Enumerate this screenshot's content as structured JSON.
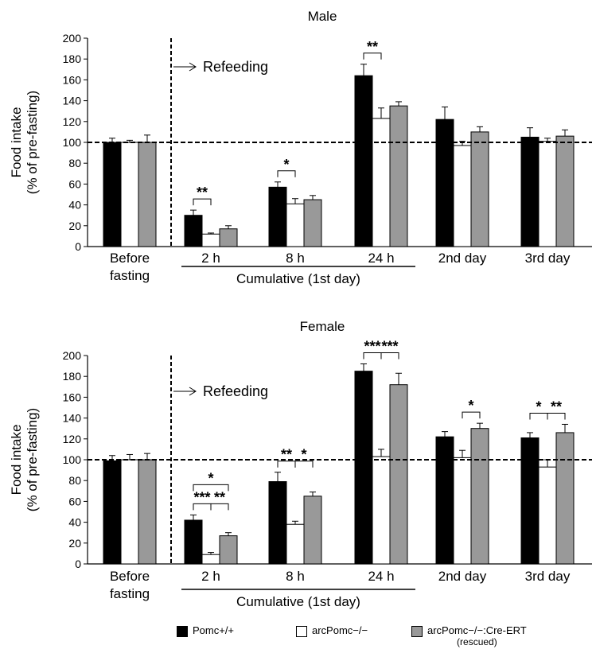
{
  "common": {
    "ylabel_line1": "Food intake",
    "ylabel_line2": "(% of pre-fasting)",
    "ylim": [
      0,
      200
    ],
    "yticks": [
      "0",
      "20",
      "40",
      "60",
      "80",
      "100",
      "120",
      "140",
      "160",
      "180",
      "200"
    ],
    "refeeding_label": "Refeeding",
    "cumulative_label": "Cumulative (1st day)",
    "categories": [
      "Before fasting",
      "2 h",
      "8 h",
      "24 h",
      "2nd day",
      "3rd day"
    ]
  },
  "legend": {
    "wt_label": "Pomc+/+",
    "ko_label": "arcPomc−/−",
    "rescued_label": "arcPomc−/−:Cre-ERT",
    "rescued_sub": "(rescued)"
  },
  "chart_data": [
    {
      "type": "bar",
      "title": "Male",
      "ylabel": "Food intake (% of pre-fasting)",
      "ylim": [
        0,
        200
      ],
      "reference_line": 100,
      "categories": [
        "Before fasting",
        "2 h",
        "8 h",
        "24 h",
        "2nd day",
        "3rd day"
      ],
      "series": [
        {
          "name": "Pomc+/+",
          "color": "#000000",
          "values": [
            100,
            30,
            57,
            164,
            122,
            105
          ],
          "errors": [
            4,
            5,
            5,
            11,
            12,
            9
          ]
        },
        {
          "name": "arcPomc−/−",
          "color": "#ffffff",
          "values": [
            100,
            12,
            41,
            123,
            97,
            101
          ],
          "errors": [
            2,
            1,
            5,
            10,
            4,
            3
          ]
        },
        {
          "name": "arcPomc−/−:Cre-ERT (rescued)",
          "color": "#999999",
          "values": [
            100,
            17,
            45,
            135,
            110,
            106
          ],
          "errors": [
            7,
            3,
            4,
            4,
            5,
            6
          ]
        }
      ],
      "significance": [
        {
          "category": "2 h",
          "from": 0,
          "to": 1,
          "label": "**"
        },
        {
          "category": "8 h",
          "from": 0,
          "to": 1,
          "label": "*"
        },
        {
          "category": "24 h",
          "from": 0,
          "to": 1,
          "label": "**"
        }
      ]
    },
    {
      "type": "bar",
      "title": "Female",
      "ylabel": "Food intake (% of pre-fasting)",
      "ylim": [
        0,
        200
      ],
      "reference_line": 100,
      "categories": [
        "Before fasting",
        "2 h",
        "8 h",
        "24 h",
        "2nd day",
        "3rd day"
      ],
      "series": [
        {
          "name": "Pomc+/+",
          "color": "#000000",
          "values": [
            99,
            42,
            79,
            185,
            122,
            121
          ],
          "errors": [
            5,
            5,
            9,
            7,
            5,
            5
          ]
        },
        {
          "name": "arcPomc−/−",
          "color": "#ffffff",
          "values": [
            100,
            9,
            38,
            103,
            102,
            93
          ],
          "errors": [
            5,
            2,
            3,
            7,
            7,
            7
          ]
        },
        {
          "name": "arcPomc−/−:Cre-ERT (rescued)",
          "color": "#999999",
          "values": [
            100,
            27,
            65,
            172,
            130,
            126
          ],
          "errors": [
            6,
            3,
            4,
            11,
            5,
            8
          ]
        }
      ],
      "significance": [
        {
          "category": "2 h",
          "from": 0,
          "to": 1,
          "label": "***"
        },
        {
          "category": "2 h",
          "from": 1,
          "to": 2,
          "label": "**"
        },
        {
          "category": "2 h",
          "from": 0,
          "to": 2,
          "label": "*"
        },
        {
          "category": "8 h",
          "from": 0,
          "to": 1,
          "label": "**"
        },
        {
          "category": "8 h",
          "from": 1,
          "to": 2,
          "label": "*"
        },
        {
          "category": "24 h",
          "from": 0,
          "to": 1,
          "label": "***"
        },
        {
          "category": "24 h",
          "from": 1,
          "to": 2,
          "label": "***"
        },
        {
          "category": "2nd day",
          "from": 1,
          "to": 2,
          "label": "*"
        },
        {
          "category": "3rd day",
          "from": 0,
          "to": 1,
          "label": "*"
        },
        {
          "category": "3rd day",
          "from": 1,
          "to": 2,
          "label": "**"
        }
      ]
    }
  ]
}
